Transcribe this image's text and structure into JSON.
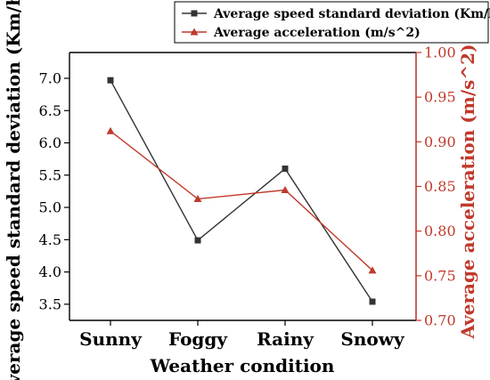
{
  "chart_data": {
    "type": "line",
    "title": "",
    "xlabel": "Weather condition",
    "categories": [
      "Sunny",
      "Foggy",
      "Rainy",
      "Snowy"
    ],
    "y_left": {
      "label": "Average speed standard deviation (Km/h)",
      "lim": [
        3.25,
        7.4
      ],
      "ticks": [
        "3.5",
        "4.0",
        "4.5",
        "5.0",
        "5.5",
        "6.0",
        "6.5",
        "7.0"
      ],
      "tick_values": [
        3.5,
        4.0,
        4.5,
        5.0,
        5.5,
        6.0,
        6.5,
        7.0
      ]
    },
    "y_right": {
      "label": "Average acceleration (m/s^2)",
      "lim": [
        0.7,
        1.0
      ],
      "ticks": [
        "0.70",
        "0.75",
        "0.80",
        "0.85",
        "0.90",
        "0.95",
        "1.00"
      ],
      "tick_values": [
        0.7,
        0.75,
        0.8,
        0.85,
        0.9,
        0.95,
        1.0
      ],
      "color": "#c0392b"
    },
    "series": [
      {
        "name": "Average speed standard deviation (Km/h)",
        "axis": "left",
        "marker": "square",
        "color": "#333333",
        "values": [
          6.97,
          4.49,
          5.6,
          3.54
        ]
      },
      {
        "name": "Average acceleration (m/s^2)",
        "axis": "right",
        "marker": "triangle",
        "color": "#c0392b",
        "values": [
          0.912,
          0.836,
          0.846,
          0.756
        ]
      }
    ],
    "legend_position": "top-right",
    "grid": false
  }
}
